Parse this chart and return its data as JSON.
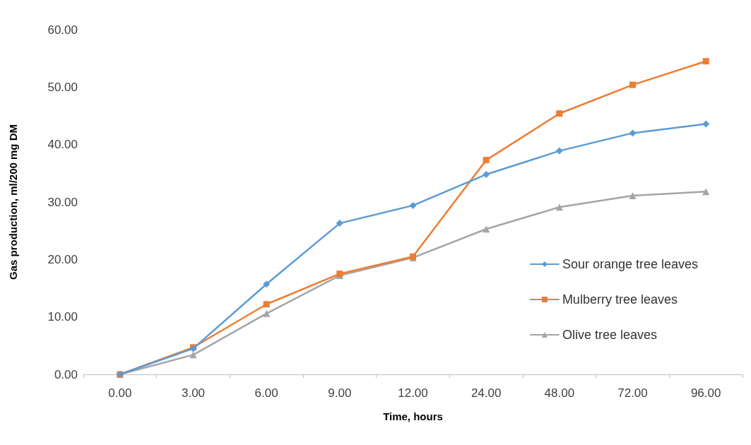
{
  "chart_data": {
    "type": "line",
    "xlabel": "Time, hours",
    "ylabel": "Gas production, ml/200 mg DM",
    "categories": [
      "0.00",
      "3.00",
      "6.00",
      "9.00",
      "12.00",
      "24.00",
      "48.00",
      "72.00",
      "96.00"
    ],
    "series": [
      {
        "name": "Sour orange tree leaves",
        "color": "#5b9bd5",
        "marker": "diamond",
        "values": [
          0,
          4.5,
          15.7,
          26.3,
          29.4,
          34.8,
          38.9,
          42.0,
          43.6
        ]
      },
      {
        "name": "Mulberry tree leaves",
        "color": "#ed7d31",
        "marker": "square",
        "values": [
          0,
          4.7,
          12.2,
          17.5,
          20.5,
          37.3,
          45.4,
          50.4,
          54.5
        ]
      },
      {
        "name": "Olive tree leaves",
        "color": "#a5a5a5",
        "marker": "triangle",
        "values": [
          0,
          3.4,
          10.6,
          17.2,
          20.3,
          25.3,
          29.1,
          31.1,
          31.8
        ]
      }
    ],
    "ylim": [
      0,
      60
    ],
    "yticks": [
      {
        "value": 0,
        "label": "0.00"
      },
      {
        "value": 10,
        "label": "10.00"
      },
      {
        "value": 20,
        "label": "20.00"
      },
      {
        "value": 30,
        "label": "30.00"
      },
      {
        "value": 40,
        "label": "40.00"
      },
      {
        "value": 50,
        "label": "50.00"
      },
      {
        "value": 60,
        "label": "60.00"
      }
    ],
    "grid": false,
    "legend": "right",
    "line_style": "solid"
  }
}
